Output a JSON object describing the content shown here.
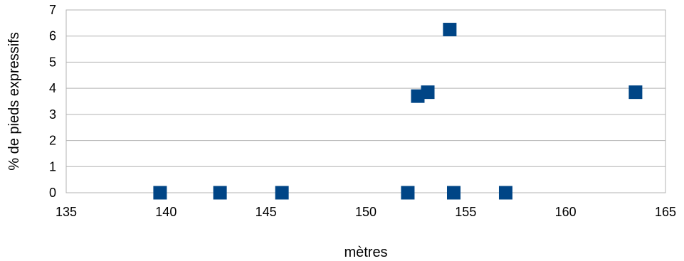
{
  "chart_data": {
    "type": "scatter",
    "title": "",
    "xlabel": "mètres",
    "ylabel": "% de pieds expressifs",
    "xlim": [
      135,
      165
    ],
    "ylim": [
      0,
      7
    ],
    "x_ticks": [
      135,
      140,
      145,
      150,
      155,
      160,
      165
    ],
    "y_ticks": [
      0,
      1,
      2,
      3,
      4,
      5,
      6,
      7
    ],
    "grid": {
      "horizontal": true,
      "vertical": false
    },
    "legend": "none",
    "marker": "square",
    "marker_color": "#004586",
    "points": [
      {
        "x": 139.7,
        "y": 0
      },
      {
        "x": 142.7,
        "y": 0
      },
      {
        "x": 145.8,
        "y": 0
      },
      {
        "x": 152.1,
        "y": 0
      },
      {
        "x": 152.6,
        "y": 3.7
      },
      {
        "x": 153.1,
        "y": 3.85
      },
      {
        "x": 154.2,
        "y": 6.25
      },
      {
        "x": 154.4,
        "y": 0
      },
      {
        "x": 157.0,
        "y": 0
      },
      {
        "x": 163.5,
        "y": 3.85
      }
    ]
  }
}
